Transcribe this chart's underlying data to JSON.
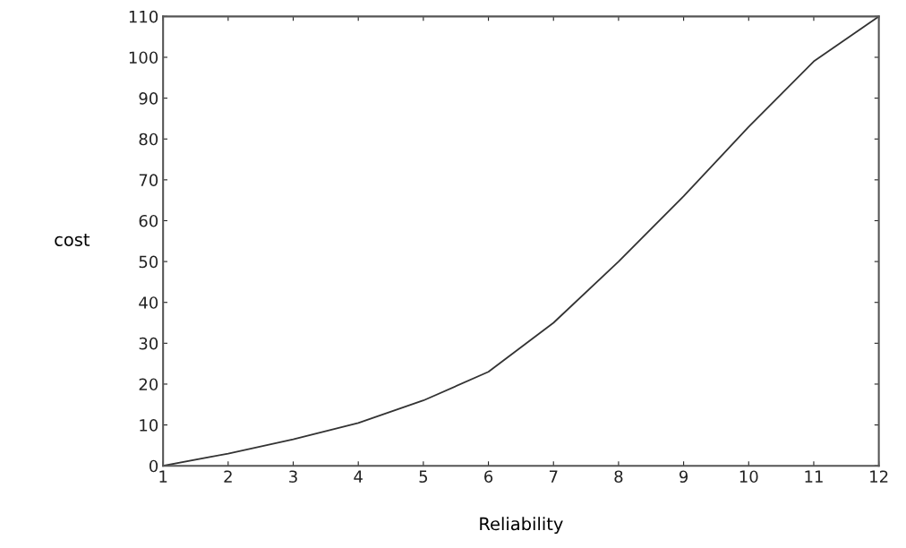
{
  "chart_data": {
    "type": "line",
    "xlabel": "Reliability",
    "ylabel": "cost",
    "x": [
      1,
      2,
      3,
      4,
      5,
      6,
      7,
      8,
      9,
      10,
      11,
      12
    ],
    "series": [
      {
        "color": "#333333",
        "values": [
          0,
          3,
          6.5,
          10.5,
          16,
          23,
          35,
          50,
          66,
          83,
          99,
          110
        ]
      }
    ],
    "xlim": [
      1,
      12
    ],
    "xticks": [
      1,
      2,
      3,
      4,
      5,
      6,
      7,
      8,
      9,
      10,
      11,
      12
    ],
    "ylim": [
      0,
      110
    ],
    "yticks": [
      0,
      10,
      20,
      30,
      40,
      50,
      60,
      70,
      80,
      90,
      100,
      110
    ],
    "grid": false,
    "marker": "none",
    "line_style": "solid"
  }
}
